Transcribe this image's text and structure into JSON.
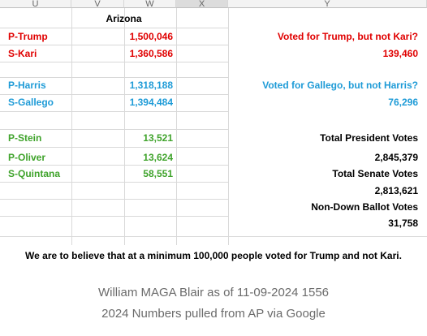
{
  "columns": [
    "U",
    "V",
    "W",
    "X",
    "Y"
  ],
  "header": "Arizona",
  "rows": {
    "p_trump": {
      "label": "P-Trump",
      "value": "1,500,046"
    },
    "s_kari": {
      "label": "S-Kari",
      "value": "1,360,586"
    },
    "p_harris": {
      "label": "P-Harris",
      "value": "1,318,188"
    },
    "s_gallego": {
      "label": "S-Gallego",
      "value": "1,394,484"
    },
    "p_stein": {
      "label": "P-Stein",
      "value": "13,521"
    },
    "p_oliver": {
      "label": "P-Oliver",
      "value": "13,624"
    },
    "s_quintana": {
      "label": "S-Quintana",
      "value": "58,551"
    }
  },
  "summary": {
    "trump_not_kari_label": "Voted for Trump, but not Kari?",
    "trump_not_kari_value": "139,460",
    "gallego_not_harris_label": "Voted for Gallego, but not Harris?",
    "gallego_not_harris_value": "76,296",
    "total_president_label": "Total President Votes",
    "total_president_value": "2,845,379",
    "total_senate_label": "Total Senate Votes",
    "total_senate_value": "2,813,621",
    "non_down_ballot_label": "Non-Down Ballot Votes",
    "non_down_ballot_value": "31,758"
  },
  "note": "We are to believe that at a minimum 100,000 people voted for Trump and not Kari.",
  "footer": {
    "line1": "William MAGA Blair as of 11-09-2024 1556",
    "line2": "2024 Numbers pulled from AP via Google"
  },
  "colors": {
    "red": "#e00000",
    "blue": "#1e9bd7",
    "green": "#3fa32b"
  }
}
